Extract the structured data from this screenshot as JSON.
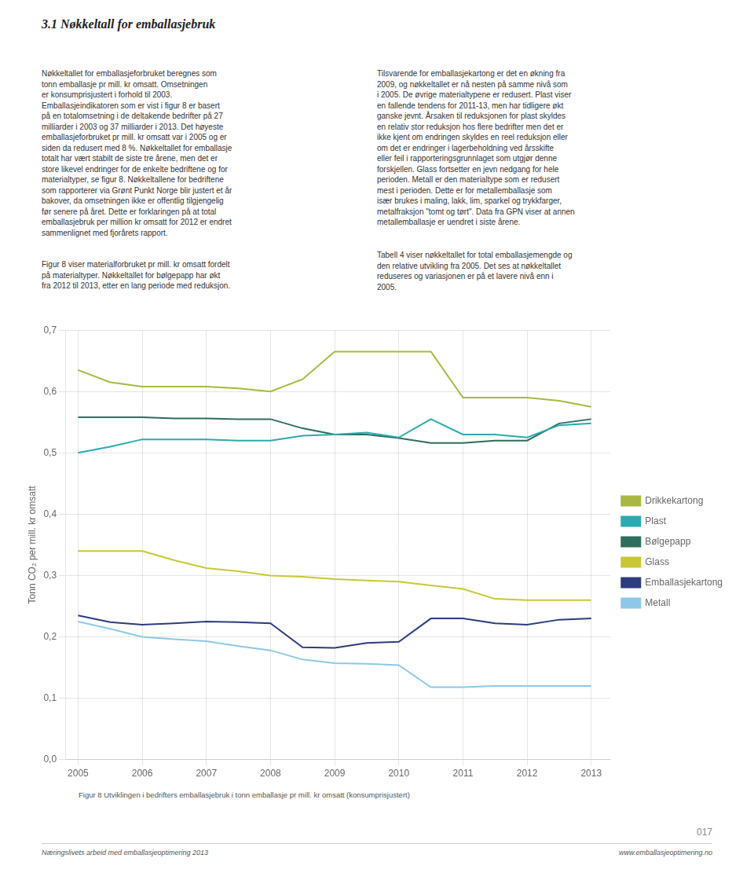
{
  "chart_data": {
    "type": "line",
    "title": "3.1 Nøkkeltall for emballasjebruk",
    "ylabel": "Tonn CO₂ per mill. kr omsatt",
    "x": [
      2005,
      2005.5,
      2006,
      2006.5,
      2007,
      2007.5,
      2008,
      2008.5,
      2009,
      2009.5,
      2010,
      2010.5,
      2011,
      2011.5,
      2012,
      2012.5,
      2013
    ],
    "series": [
      {
        "name": "Drikkekartong",
        "color": "#a8b840",
        "values": [
          0.635,
          0.615,
          0.608,
          0.608,
          0.608,
          0.605,
          0.6,
          0.62,
          0.665,
          0.665,
          0.665,
          0.665,
          0.59,
          0.59,
          0.59,
          0.585,
          0.575
        ]
      },
      {
        "name": "Plast",
        "color": "#2baab0",
        "values": [
          0.5,
          0.51,
          0.522,
          0.522,
          0.522,
          0.52,
          0.52,
          0.528,
          0.53,
          0.533,
          0.525,
          0.555,
          0.53,
          0.53,
          0.525,
          0.545,
          0.548
        ]
      },
      {
        "name": "Bølgepapp",
        "color": "#2d6e5e",
        "values": [
          0.558,
          0.558,
          0.558,
          0.556,
          0.556,
          0.555,
          0.555,
          0.54,
          0.53,
          0.53,
          0.524,
          0.516,
          0.516,
          0.52,
          0.52,
          0.548,
          0.555
        ]
      },
      {
        "name": "Glass",
        "color": "#c8c835",
        "values": [
          0.34,
          0.34,
          0.34,
          0.325,
          0.312,
          0.307,
          0.3,
          0.298,
          0.294,
          0.292,
          0.29,
          0.284,
          0.278,
          0.262,
          0.26,
          0.26,
          0.26
        ]
      },
      {
        "name": "Emballasjekartong",
        "color": "#2b3d7e",
        "values": [
          0.235,
          0.224,
          0.22,
          0.222,
          0.225,
          0.224,
          0.222,
          0.183,
          0.182,
          0.19,
          0.192,
          0.23,
          0.23,
          0.222,
          0.22,
          0.228,
          0.23
        ]
      },
      {
        "name": "Metall",
        "color": "#8ec8e8",
        "values": [
          0.225,
          0.213,
          0.2,
          0.196,
          0.193,
          0.185,
          0.178,
          0.163,
          0.157,
          0.156,
          0.154,
          0.118,
          0.118,
          0.12,
          0.12,
          0.12,
          0.12
        ]
      }
    ],
    "xlim": [
      2004.8,
      2013.3
    ],
    "xticks": [
      2005,
      2006,
      2007,
      2008,
      2009,
      2010,
      2011,
      2012,
      2013
    ],
    "ylim": [
      0.0,
      0.7
    ],
    "yticks": [
      {
        "value": 0.0,
        "label": "0,0"
      },
      {
        "value": 0.1,
        "label": "0,1"
      },
      {
        "value": 0.2,
        "label": "0,2"
      },
      {
        "value": 0.3,
        "label": "0,3"
      },
      {
        "value": 0.4,
        "label": "0,4"
      },
      {
        "value": 0.5,
        "label": "0,5"
      },
      {
        "value": 0.6,
        "label": "0,6"
      },
      {
        "value": 0.7,
        "label": "0,7"
      }
    ],
    "grid": true,
    "legend": "right",
    "annotations": [
      "Nøkkeltallet for emballasjeforbruket beregnes som\ntonn emballasje pr mill. kr omsatt. Omsetningen\ner konsumprisjustert i forhold til 2003.\nEmballasjeindikatoren som er vist i figur 8 er basert\npå en totalomsetning i de deltakende bedrifter på 27\nmilliarder i 2003 og 37 milliarder i 2013. Det høyeste\nemballasjeforbruket pr mill. kr omsatt var i 2005 og er\nsiden da redusert med 8 %. Nøkkeltallet for emballasje\ntotalt har vært stabilt de siste tre årene, men det er\nstore likevel endringer for de enkelte bedriftene og for\nmaterialtyper, se figur 8. Nøkkeltallene for bedriftene\nsom rapporterer via Grønt Punkt Norge blir justert et år\nbakover, da omsetningen ikke er offentlig tilgjengelig\nfør senere på året. Dette er forklaringen på at total\nemballasjebruk per million kr omsatt for 2012 er endret\nsammenlignet med fjorårets rapport.",
      "Figur 8 viser materialforbruket pr mill. kr omsatt fordelt\npå materialtyper. Nøkkeltallet for bølgepapp har økt\nfra 2012 til 2013, etter en lang periode med reduksjon.",
      "Tilsvarende for emballasjekartong er det en økning fra\n2009, og nøkkeltallet er nå nesten på samme nivå som\ni 2005. De øvrige materialtypene er redusert. Plast viser\nen fallende tendens for 2011-13, men har tidligere økt\nganske jevnt. Årsaken til reduksjonen for plast skyldes\nen relativ stor reduksjon hos flere bedrifter men det er\nikke kjent om endringen skyldes en reel reduksjon eller\nom det er endringer i lagerbeholdning ved årsskifte\neller feil i rapporteringsgrunnlaget som utgjør denne\nforskjellen. Glass fortsetter en jevn nedgang for hele\nperioden. Metall er den materialtype som er redusert\nmest i perioden. Dette er for metallemballasje som\nisær brukes i maling, lakk, lim, sparkel og trykkfarger,\nmetalfraksjon \"tomt og tørt\". Data fra GPN viser at annen\nmetallemballasje er uendret i siste årene.",
      "Tabell 4 viser nøkkeltallet for total emballasjemengde og\nden relative utvikling fra 2005. Det ses at nøkkeltallet\nreduseres og variasjonen er på et lavere nivå enn i\n2005.",
      "Figur 8 Utviklingen i bedrifters emballasjebruk i tonn emballasje pr mill. kr omsatt (konsumprisjustert)",
      "Næringslivets arbeid med emballasjeoptimering 2013",
      "www.emballasjeoptimering.no",
      "017"
    ]
  }
}
